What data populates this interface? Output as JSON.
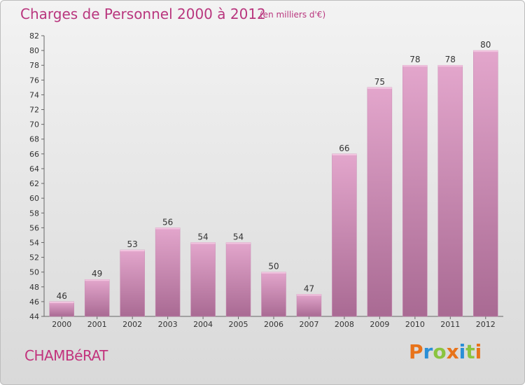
{
  "chart_data": {
    "type": "bar",
    "title": "Charges de Personnel 2000 à 2012",
    "subtitle": "(en milliers d'€)",
    "categories": [
      "2000",
      "2001",
      "2002",
      "2003",
      "2004",
      "2005",
      "2006",
      "2007",
      "2008",
      "2009",
      "2010",
      "2011",
      "2012"
    ],
    "values": [
      46,
      49,
      53,
      56,
      54,
      54,
      50,
      47,
      66,
      75,
      78,
      78,
      80
    ],
    "ylim": [
      44,
      82
    ],
    "yticks": [
      44,
      46,
      48,
      50,
      52,
      54,
      56,
      58,
      60,
      62,
      64,
      66,
      68,
      70,
      72,
      74,
      76,
      78,
      80,
      82
    ],
    "grid": false,
    "bar_color": "#d68fbb"
  },
  "footer": {
    "location": "CHAMBéRAT",
    "brand": [
      "P",
      "r",
      "o",
      "x",
      "i",
      "t",
      "i"
    ]
  }
}
